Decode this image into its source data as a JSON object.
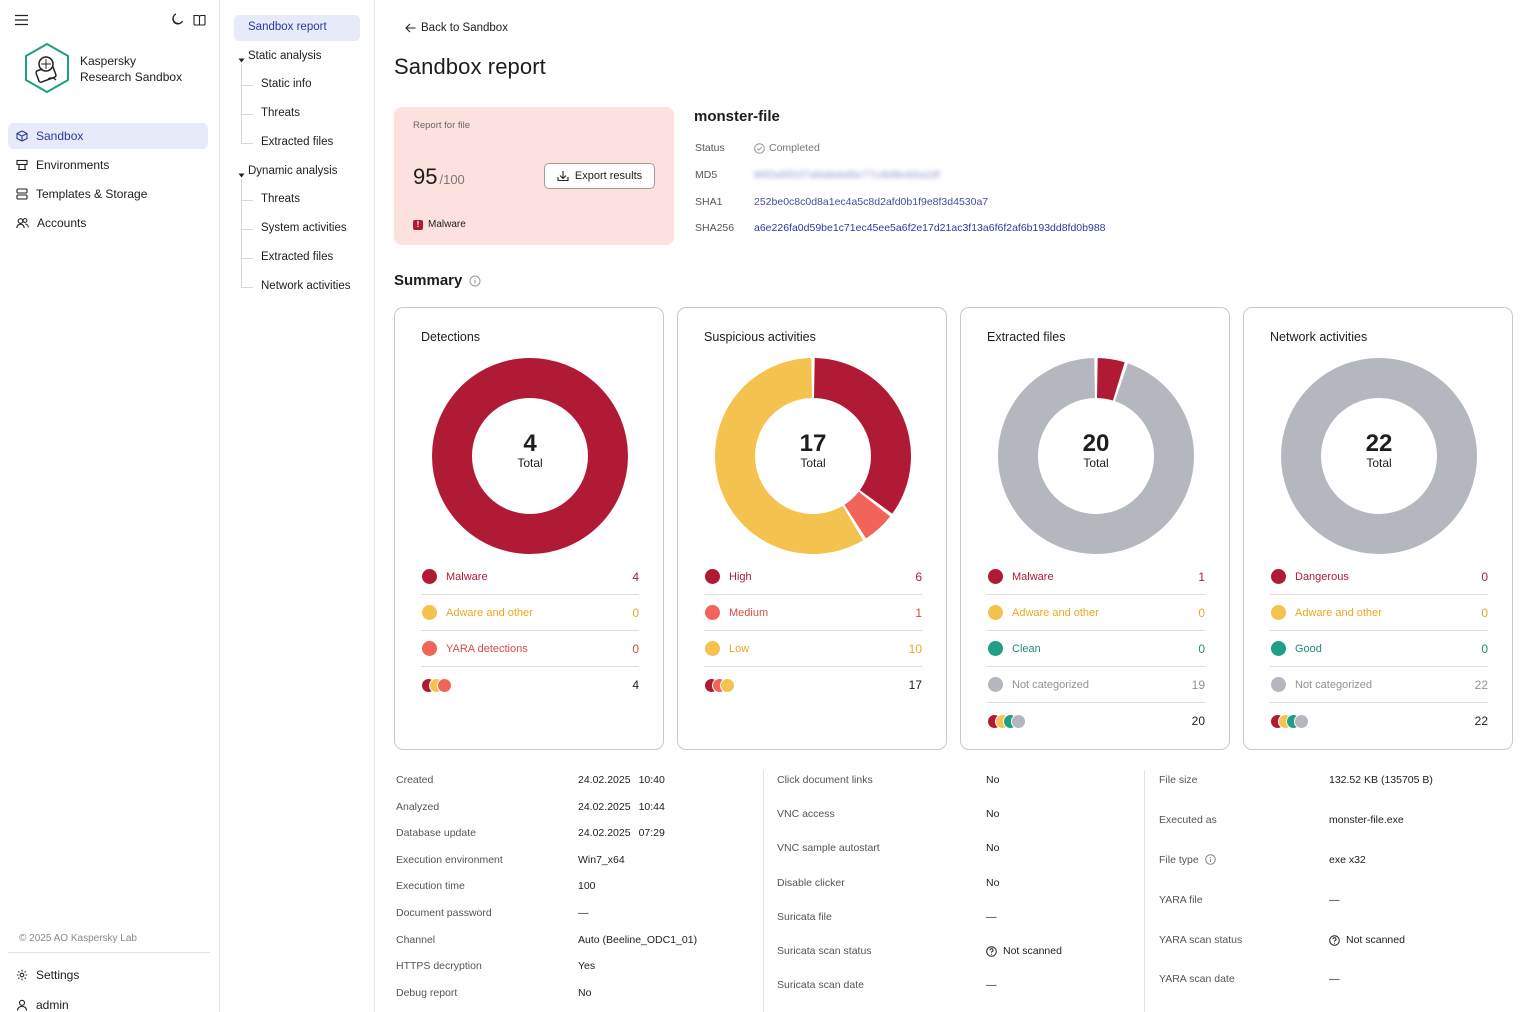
{
  "app": {
    "brand_line1": "Kaspersky",
    "brand_line2": "Research Sandbox",
    "copyright": "© 2025 AO Kaspersky Lab"
  },
  "nav": {
    "items": [
      {
        "label": "Sandbox",
        "icon": "cube-icon",
        "active": true
      },
      {
        "label": "Environments",
        "icon": "environments-icon",
        "active": false
      },
      {
        "label": "Templates & Storage",
        "icon": "storage-icon",
        "active": false
      },
      {
        "label": "Accounts",
        "icon": "users-icon",
        "active": false
      }
    ],
    "settings": "Settings",
    "user": "admin"
  },
  "tree": {
    "report": "Sandbox report",
    "static": "Static analysis",
    "static_items": [
      "Static info",
      "Threats",
      "Extracted files"
    ],
    "dynamic": "Dynamic analysis",
    "dynamic_items": [
      "Threats",
      "System activities",
      "Extracted files",
      "Network activities"
    ]
  },
  "header": {
    "back": "Back to Sandbox",
    "title": "Sandbox report"
  },
  "score_card": {
    "label": "Report for file",
    "score": "95",
    "max": "/100",
    "export": "Export results",
    "verdict": "Malware",
    "verdict_mark": "!"
  },
  "file": {
    "name": "monster-file",
    "status_key": "Status",
    "status": "Completed",
    "md5_key": "MD5",
    "md5": "86f2a5f31f7a9a8ebd5e77c4b9bcb5a2df",
    "sha1_key": "SHA1",
    "sha1": "252be0c8c0d8a1ec4a5c8d2afd0b1f9e8f3d4530a7",
    "sha256_key": "SHA256",
    "sha256": "a6e226fa0d59be1c71ec45ee5a6f2e17d21ac3f13a6f6f2af6b193dd8fd0b988"
  },
  "summary": {
    "title": "Summary",
    "cards": [
      {
        "title": "Detections",
        "total": "4",
        "total_label": "Total",
        "legend": [
          {
            "label": "Malware",
            "value": "4",
            "color": "#b01a35",
            "label_color": "#b01a35"
          },
          {
            "label": "Adware and other",
            "value": "0",
            "color": "#f4c24f",
            "label_color": "#e8a920"
          },
          {
            "label": "YARA detections",
            "value": "0",
            "color": "#f2645a",
            "label_color": "#d94b42"
          }
        ],
        "stack_total": "4",
        "stack_colors": [
          "#b01a35",
          "#f4c24f",
          "#f2645a"
        ]
      },
      {
        "title": "Suspicious activities",
        "total": "17",
        "total_label": "Total",
        "legend": [
          {
            "label": "High",
            "value": "6",
            "color": "#b01a35",
            "label_color": "#b01a35"
          },
          {
            "label": "Medium",
            "value": "1",
            "color": "#f2645a",
            "label_color": "#d94b42"
          },
          {
            "label": "Low",
            "value": "10",
            "color": "#f4c24f",
            "label_color": "#e8a920"
          }
        ],
        "stack_total": "17",
        "stack_colors": [
          "#b01a35",
          "#f2645a",
          "#f4c24f"
        ]
      },
      {
        "title": "Extracted files",
        "total": "20",
        "total_label": "Total",
        "legend": [
          {
            "label": "Malware",
            "value": "1",
            "color": "#b01a35",
            "label_color": "#b01a35"
          },
          {
            "label": "Adware and other",
            "value": "0",
            "color": "#f4c24f",
            "label_color": "#e8a920"
          },
          {
            "label": "Clean",
            "value": "0",
            "color": "#1f9f85",
            "label_color": "#1f8f78"
          },
          {
            "label": "Not categorized",
            "value": "19",
            "color": "#b4b7bd",
            "label_color": "#8f9297"
          }
        ],
        "stack_total": "20",
        "stack_colors": [
          "#b01a35",
          "#f4c24f",
          "#1f9f85",
          "#b4b7bd"
        ]
      },
      {
        "title": "Network activities",
        "total": "22",
        "total_label": "Total",
        "legend": [
          {
            "label": "Dangerous",
            "value": "0",
            "color": "#b01a35",
            "label_color": "#b01a35"
          },
          {
            "label": "Adware and other",
            "value": "0",
            "color": "#f4c24f",
            "label_color": "#e8a920"
          },
          {
            "label": "Good",
            "value": "0",
            "color": "#1f9f85",
            "label_color": "#1f8f78"
          },
          {
            "label": "Not categorized",
            "value": "22",
            "color": "#b4b7bd",
            "label_color": "#8f9297"
          }
        ],
        "stack_total": "22",
        "stack_colors": [
          "#b01a35",
          "#f4c24f",
          "#1f9f85",
          "#b4b7bd"
        ]
      }
    ]
  },
  "props": {
    "col1": [
      {
        "k": "Created",
        "v": "24.02.2025",
        "t": "10:40"
      },
      {
        "k": "Analyzed",
        "v": "24.02.2025",
        "t": "10:44"
      },
      {
        "k": "Database update",
        "v": "24.02.2025",
        "t": "07:29"
      },
      {
        "k": "Execution environment",
        "v": "Win7_x64",
        "t": ""
      },
      {
        "k": "Execution time",
        "v": "100",
        "t": ""
      },
      {
        "k": "Document password",
        "v": "—",
        "t": ""
      },
      {
        "k": "Channel",
        "v": "Auto (Beeline_ODC1_01)",
        "t": ""
      },
      {
        "k": "HTTPS decryption",
        "v": "Yes",
        "t": ""
      },
      {
        "k": "Debug report",
        "v": "No",
        "t": ""
      }
    ],
    "col2": [
      {
        "k": "Click document links",
        "v": "No"
      },
      {
        "k": "VNC access",
        "v": "No"
      },
      {
        "k": "VNC sample autostart",
        "v": "No"
      },
      {
        "k": "Disable clicker",
        "v": "No"
      },
      {
        "k": "Suricata file",
        "v": "—"
      },
      {
        "k": "Suricata scan status",
        "v": "Not scanned"
      },
      {
        "k": "Suricata scan date",
        "v": "—"
      }
    ],
    "col3": [
      {
        "k": "File size",
        "v": "132.52 KB (135705 B)"
      },
      {
        "k": "Executed as",
        "v": "monster-file.exe"
      },
      {
        "k": "File type",
        "v": "exe x32"
      },
      {
        "k": "YARA file",
        "v": "—"
      },
      {
        "k": "YARA scan status",
        "v": "Not scanned"
      },
      {
        "k": "YARA scan date",
        "v": "—"
      }
    ]
  },
  "chart_data": [
    {
      "type": "pie",
      "title": "Detections",
      "categories": [
        "Malware",
        "Adware and other",
        "YARA detections"
      ],
      "values": [
        4,
        0,
        0
      ]
    },
    {
      "type": "pie",
      "title": "Suspicious activities",
      "categories": [
        "High",
        "Medium",
        "Low"
      ],
      "values": [
        6,
        1,
        10
      ]
    },
    {
      "type": "pie",
      "title": "Extracted files",
      "categories": [
        "Malware",
        "Adware and other",
        "Clean",
        "Not categorized"
      ],
      "values": [
        1,
        0,
        0,
        19
      ]
    },
    {
      "type": "pie",
      "title": "Network activities",
      "categories": [
        "Dangerous",
        "Adware and other",
        "Good",
        "Not categorized"
      ],
      "values": [
        0,
        0,
        0,
        22
      ]
    }
  ]
}
